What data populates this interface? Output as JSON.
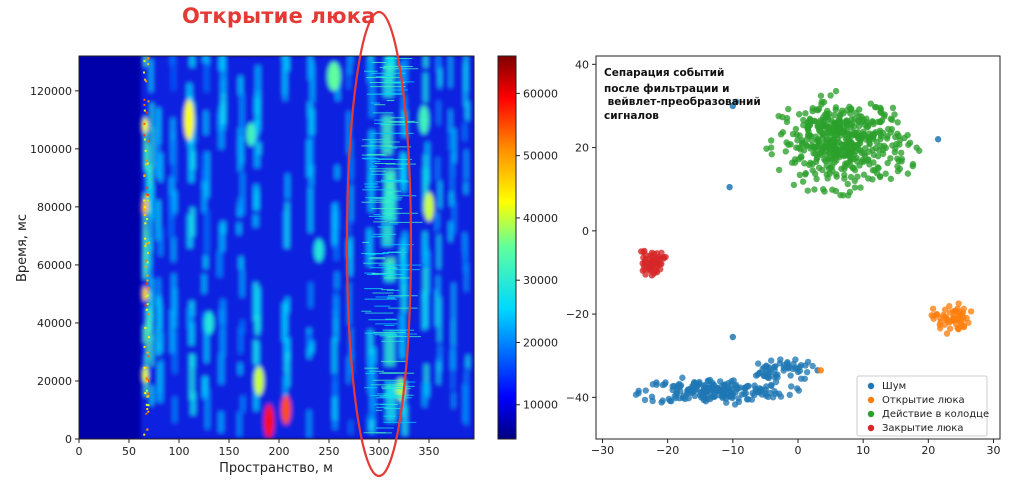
{
  "chart_data": [
    {
      "type": "heatmap",
      "title": "Открытие люка",
      "xlabel": "Пространство, м",
      "ylabel": "Время, мс",
      "xlim": [
        0,
        395
      ],
      "ylim": [
        0,
        132000
      ],
      "xticks": [
        "0",
        "50",
        "100",
        "150",
        "200",
        "250",
        "300",
        "350"
      ],
      "yticks": [
        "0",
        "20000",
        "40000",
        "60000",
        "80000",
        "100000",
        "120000"
      ],
      "colorbar": {
        "range": [
          4500,
          66000
        ],
        "ticks": [
          "10000",
          "20000",
          "30000",
          "40000",
          "50000",
          "60000"
        ],
        "colormap": "jet"
      },
      "annotation": {
        "shape": "ellipse",
        "color": "#e53935",
        "center_x": 303,
        "center_y": 66000
      }
    },
    {
      "type": "scatter",
      "xlim": [
        -31,
        31
      ],
      "ylim": [
        -50,
        42
      ],
      "xticks": [
        "−30",
        "−20",
        "−10",
        "0",
        "10",
        "20",
        "30"
      ],
      "yticks": [
        "−40",
        "−20",
        "0",
        "20",
        "40"
      ],
      "annotation_lines": [
        "Сепарация событий",
        "после фильтрации и",
        " вейвлет-преобразований",
        "сигналов"
      ],
      "legend_position": "lower-right",
      "series": [
        {
          "name": "Шум",
          "color": "#1f77b4",
          "clusters": [
            {
              "cx": -13,
              "cy": -38.5,
              "sx": 10.0,
              "sy": 2.6,
              "n": 200
            },
            {
              "cx": -5,
              "cy": -34,
              "sx": 2.5,
              "sy": 2.2,
              "n": 30
            },
            {
              "cx": -1,
              "cy": -33,
              "sx": 2.5,
              "sy": 2.5,
              "n": 25
            }
          ],
          "extra_points": [
            [
              -10,
              30
            ],
            [
              -9.5,
              31
            ],
            [
              -10.5,
              10.5
            ],
            [
              21.5,
              22
            ],
            [
              -10,
              -25.5
            ],
            [
              3,
              -33.5
            ]
          ]
        },
        {
          "name": "Открытие люка",
          "color": "#ff7f0e",
          "clusters": [
            {
              "cx": 23.5,
              "cy": -21,
              "sx": 2.5,
              "sy": 3.0,
              "n": 60
            }
          ],
          "extra_points": [
            [
              3.5,
              -33.5
            ]
          ]
        },
        {
          "name": "Действие в колодце",
          "color": "#2ca02c",
          "clusters": [
            {
              "cx": 7,
              "cy": 21,
              "sx": 9.0,
              "sy": 9.5,
              "n": 480
            }
          ],
          "extra_points": []
        },
        {
          "name": "Закрытие люка",
          "color": "#d62728",
          "clusters": [
            {
              "cx": -22.5,
              "cy": -7.5,
              "sx": 1.8,
              "sy": 2.6,
              "n": 55
            }
          ],
          "extra_points": []
        }
      ]
    }
  ]
}
